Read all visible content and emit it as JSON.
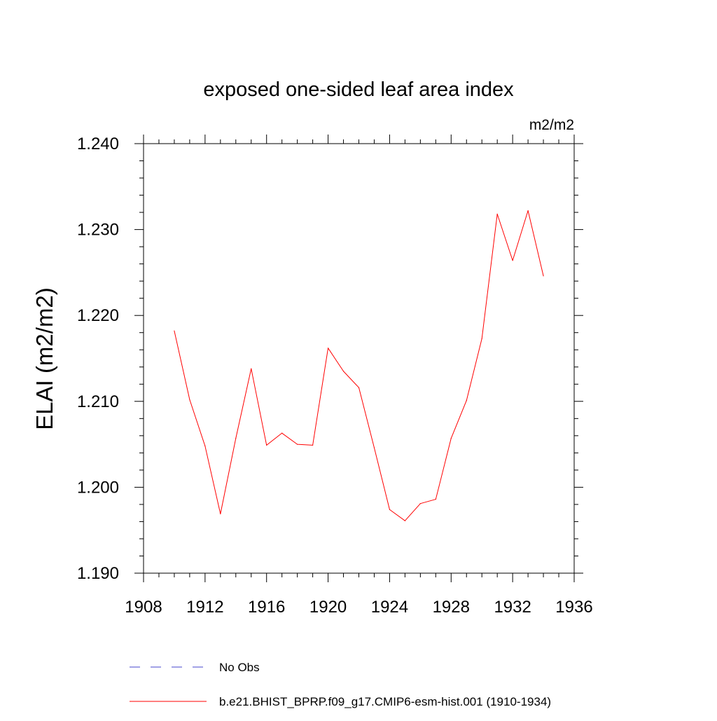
{
  "chart_data": {
    "type": "line",
    "title": "exposed one-sided leaf area index",
    "units": "m2/m2",
    "ylabel": "ELAI  (m2/m2)",
    "xlabel": "",
    "xlim": [
      1908,
      1936
    ],
    "ylim": [
      1.19,
      1.24
    ],
    "x_ticks": [
      1908,
      1912,
      1916,
      1920,
      1924,
      1928,
      1932,
      1936
    ],
    "x_tick_labels": [
      "1908",
      "1912",
      "1916",
      "1920",
      "1924",
      "1928",
      "1932",
      "1936"
    ],
    "y_ticks": [
      1.19,
      1.2,
      1.21,
      1.22,
      1.23,
      1.24
    ],
    "y_tick_labels": [
      "1.190",
      "1.200",
      "1.210",
      "1.220",
      "1.230",
      "1.240"
    ],
    "grid": false,
    "series": [
      {
        "name": "b.e21.BHIST_BPRP.f09_g17.CMIP6-esm-hist.001 (1910-1934)",
        "color": "#ff0000",
        "x": [
          1910,
          1911,
          1912,
          1913,
          1914,
          1915,
          1916,
          1917,
          1918,
          1919,
          1920,
          1921,
          1922,
          1923,
          1924,
          1925,
          1926,
          1927,
          1928,
          1929,
          1930,
          1931,
          1932,
          1933,
          1934
        ],
        "values": [
          1.2182,
          1.2102,
          1.2048,
          1.1969,
          1.2057,
          1.2138,
          1.2049,
          1.2063,
          1.205,
          1.2049,
          1.2162,
          1.2135,
          1.2116,
          1.2046,
          1.1974,
          1.1961,
          1.1981,
          1.1986,
          1.2057,
          1.2101,
          1.2173,
          1.2318,
          1.2264,
          1.2322,
          1.2246
        ]
      }
    ],
    "legend": {
      "placement": "bottom",
      "entries": [
        {
          "label": "No Obs",
          "style": "dashed",
          "color": "#4444cc"
        },
        {
          "label": "b.e21.BHIST_BPRP.f09_g17.CMIP6-esm-hist.001 (1910-1934)",
          "style": "solid",
          "color": "#ff0000"
        }
      ]
    }
  }
}
